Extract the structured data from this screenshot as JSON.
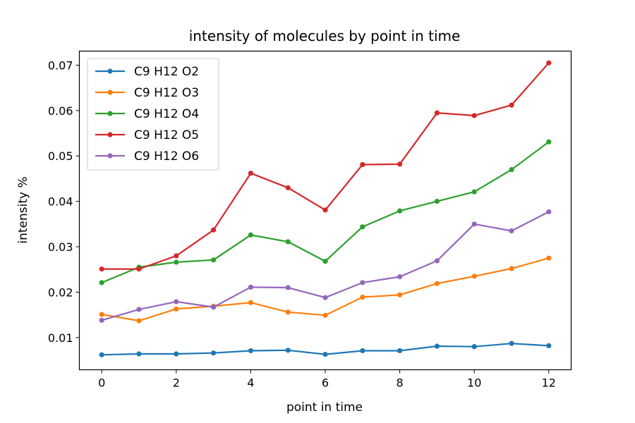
{
  "chart_data": {
    "type": "line",
    "title": "intensity of molecules by point in time",
    "xlabel": "point in time",
    "ylabel": "intensity %",
    "x": [
      0,
      1,
      2,
      3,
      4,
      5,
      6,
      7,
      8,
      9,
      10,
      11,
      12
    ],
    "xlim": [
      -0.6,
      12.6
    ],
    "ylim": [
      0.0029,
      0.0731
    ],
    "xticks": [
      0,
      2,
      4,
      6,
      8,
      10,
      12
    ],
    "xtick_labels": [
      "0",
      "2",
      "4",
      "6",
      "8",
      "10",
      "12"
    ],
    "yticks": [
      0.01,
      0.02,
      0.03,
      0.04,
      0.05,
      0.06,
      0.07
    ],
    "ytick_labels": [
      "0.01",
      "0.02",
      "0.03",
      "0.04",
      "0.05",
      "0.06",
      "0.07"
    ],
    "grid": false,
    "legend_position": "upper-left",
    "series": [
      {
        "name": "C9 H12 O2",
        "color": "#1f77b4",
        "values": [
          0.0062,
          0.0064,
          0.0064,
          0.0066,
          0.0071,
          0.0072,
          0.0063,
          0.0071,
          0.0071,
          0.0081,
          0.008,
          0.0087,
          0.0082
        ]
      },
      {
        "name": "C9 H12 O3",
        "color": "#ff7f0e",
        "values": [
          0.0151,
          0.0137,
          0.0163,
          0.0169,
          0.0177,
          0.0156,
          0.0149,
          0.0189,
          0.0194,
          0.0219,
          0.0235,
          0.0252,
          0.0275
        ]
      },
      {
        "name": "C9 H12 O4",
        "color": "#2ca02c",
        "values": [
          0.0221,
          0.0255,
          0.0266,
          0.0271,
          0.0326,
          0.0311,
          0.0268,
          0.0344,
          0.0379,
          0.04,
          0.0421,
          0.047,
          0.0531
        ]
      },
      {
        "name": "C9 H12 O5",
        "color": "#d62728",
        "values": [
          0.0251,
          0.0251,
          0.028,
          0.0337,
          0.0462,
          0.043,
          0.0381,
          0.0481,
          0.0482,
          0.0595,
          0.0589,
          0.0612,
          0.0705
        ]
      },
      {
        "name": "C9 H12 O6",
        "color": "#9467bd",
        "values": [
          0.0138,
          0.0162,
          0.0179,
          0.0167,
          0.0211,
          0.021,
          0.0188,
          0.0221,
          0.0234,
          0.0269,
          0.035,
          0.0335,
          0.0377
        ]
      }
    ]
  }
}
